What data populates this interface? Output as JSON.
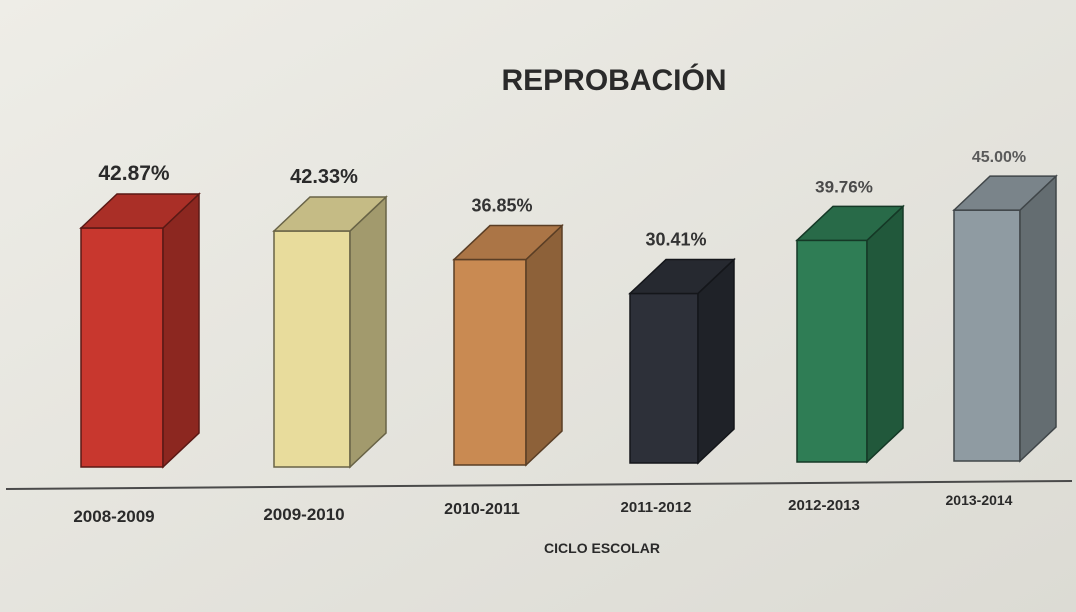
{
  "chart_data": {
    "type": "bar",
    "title": "REPROBACIÓN",
    "xlabel": "CICLO ESCOLAR",
    "ylabel": "",
    "categories": [
      "2008-2009",
      "2009-2010",
      "2010-2011",
      "2011-2012",
      "2012-2013",
      "2013-2014"
    ],
    "values": [
      42.87,
      42.33,
      36.85,
      30.41,
      39.76,
      45.0
    ],
    "value_labels": [
      "42.87%",
      "42.33%",
      "36.85%",
      "30.41%",
      "39.76%",
      "45.00%"
    ],
    "ylim": [
      0,
      50
    ],
    "grid": false,
    "legend": "none",
    "bar_style": "3d",
    "colors": [
      "#c8372e",
      "#e8dc9c",
      "#c98a52",
      "#2d3039",
      "#2f7d55",
      "#8f9ba2"
    ]
  }
}
